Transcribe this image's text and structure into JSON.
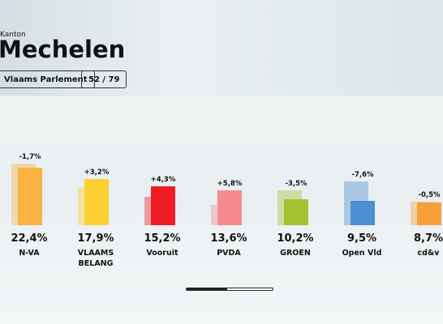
{
  "header": {
    "subtitle": "Kanton",
    "title": "Mechelen",
    "buttons": [
      "Vlaams Parlement",
      "52 / 79"
    ]
  },
  "chart_data": {
    "type": "bar",
    "categories": [
      "N-VA",
      "VLAAMS BELANG",
      "Vooruit",
      "PVDA",
      "GROEN",
      "Open Vld",
      "cd&v"
    ],
    "values": [
      22.4,
      17.9,
      15.2,
      13.6,
      10.2,
      9.5,
      8.7
    ],
    "value_labels": [
      "22,4%",
      "17,9%",
      "15,2%",
      "13,6%",
      "10,2%",
      "9,5%",
      "8,7%"
    ],
    "changes": [
      -1.7,
      3.2,
      4.3,
      5.8,
      -3.5,
      -7.6,
      -0.5
    ],
    "change_labels": [
      "-1,7%",
      "+3,2%",
      "+4,3%",
      "+5,8%",
      "-3,5%",
      "-7,6%",
      "-0,5%"
    ],
    "colors": [
      "#f9b243",
      "#fdd033",
      "#ee1c25",
      "#f68a8e",
      "#a4c12f",
      "#4a8fd2",
      "#f7a03a"
    ]
  }
}
